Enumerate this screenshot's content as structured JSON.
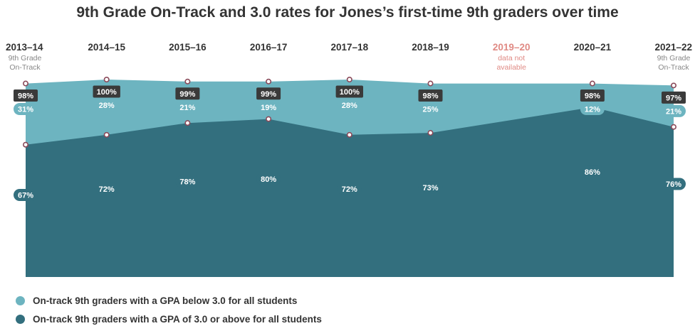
{
  "chart_data": {
    "type": "area",
    "title": "9th Grade On-Track and 3.0 rates for Jones’s first-time 9th graders over time",
    "categories": [
      "2013–14",
      "2014–15",
      "2015–16",
      "2016–17",
      "2017–18",
      "2018–19",
      "2019–20",
      "2020–21",
      "2021–22"
    ],
    "category_notes": [
      {
        "index": 0,
        "lines": [
          "9th Grade",
          "On-Track"
        ]
      },
      {
        "index": 6,
        "lines": [
          "data not",
          "available"
        ]
      },
      {
        "index": 8,
        "lines": [
          "9th Grade",
          "On-Track"
        ]
      }
    ],
    "missing_index": 6,
    "ylim": [
      0,
      100
    ],
    "grid": false,
    "legend_placement": "bottom-left",
    "series": [
      {
        "name": "On-track 9th graders with a GPA of 3.0 or above for all students",
        "values": [
          67,
          72,
          78,
          80,
          72,
          73,
          null,
          86,
          76
        ],
        "labels": [
          "67%",
          "72%",
          "78%",
          "80%",
          "72%",
          "73%",
          "",
          "86%",
          "76%"
        ]
      },
      {
        "name": "On-track 9th graders with a GPA below 3.0 for all students",
        "values": [
          31,
          28,
          21,
          19,
          28,
          25,
          null,
          12,
          21
        ],
        "labels": [
          "31%",
          "28%",
          "21%",
          "19%",
          "28%",
          "25%",
          "",
          "12%",
          "21%"
        ]
      }
    ],
    "on_track_total": {
      "values": [
        98,
        100,
        99,
        99,
        100,
        98,
        null,
        98,
        97
      ],
      "labels": [
        "98%",
        "100%",
        "99%",
        "99%",
        "100%",
        "98%",
        "",
        "98%",
        "97%"
      ]
    },
    "colors": {
      "above_3": "#336f7e",
      "below_3": "#6db4c0",
      "total_label_bg": "#3a3a3a",
      "missing_year": "#e08a84",
      "title": "#333333",
      "axis_text": "#333333",
      "note_text": "#888888"
    }
  }
}
